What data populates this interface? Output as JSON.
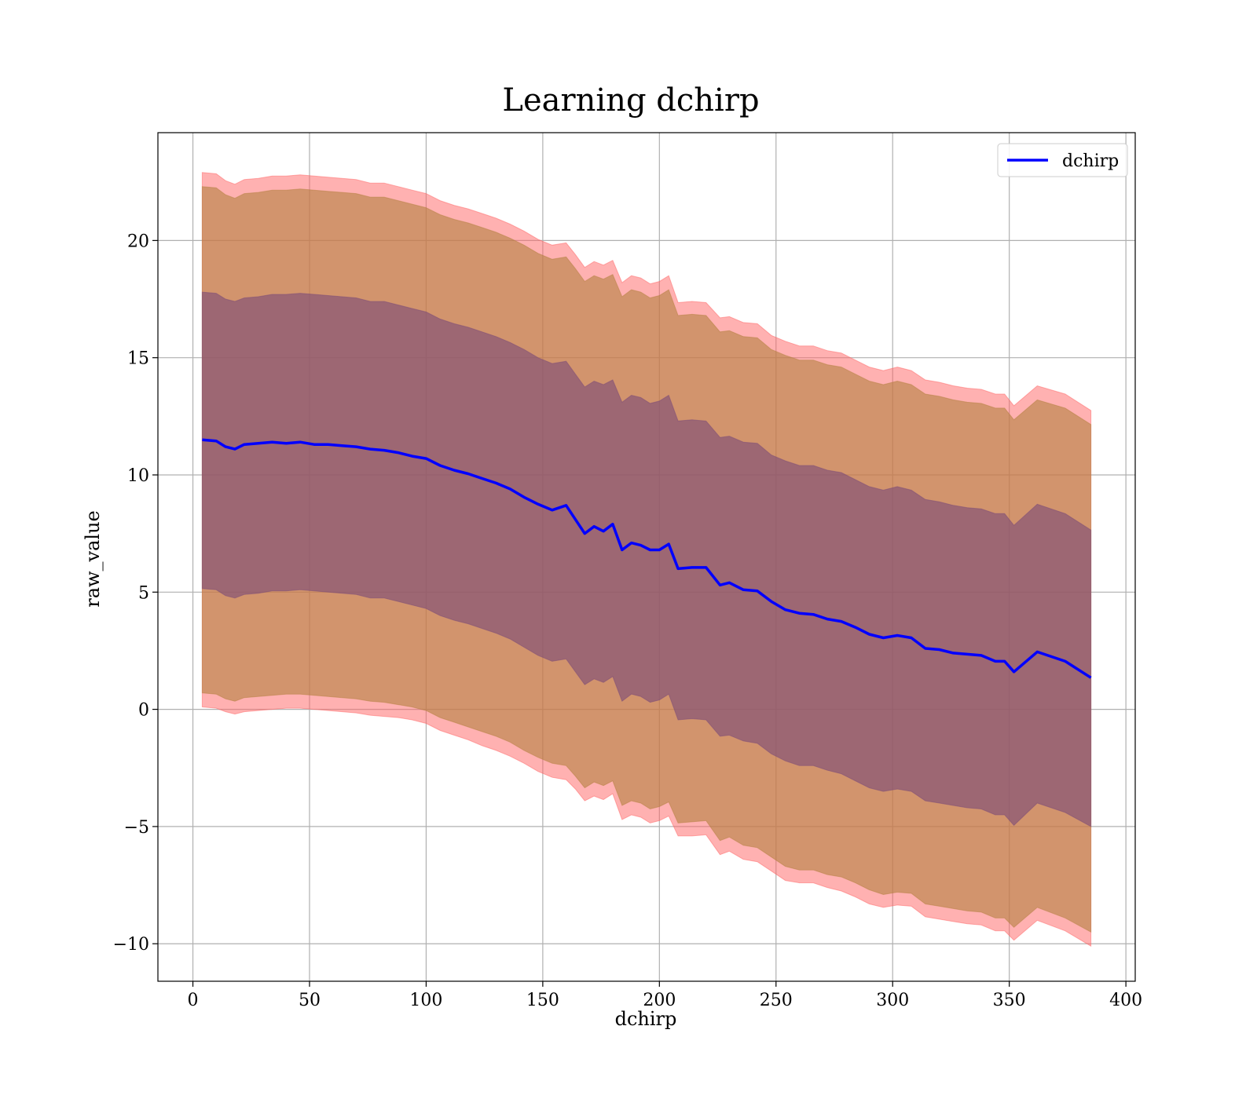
{
  "chart_data": {
    "type": "area",
    "title": "Learning dchirp",
    "xlabel": "dchirp",
    "ylabel": "raw_value",
    "xlim": [
      -15,
      404
    ],
    "ylim": [
      -11.6,
      24.6
    ],
    "xticks": [
      0,
      50,
      100,
      150,
      200,
      250,
      300,
      350,
      400
    ],
    "xtick_labels": [
      "0",
      "50",
      "100",
      "150",
      "200",
      "250",
      "300",
      "350",
      "400"
    ],
    "yticks": [
      -10,
      -5,
      0,
      5,
      10,
      15,
      20
    ],
    "ytick_labels": [
      "−10",
      "−5",
      "0",
      "5",
      "10",
      "15",
      "20"
    ],
    "grid": true,
    "legend": {
      "position": "top-right",
      "entries": [
        {
          "label": "dchirp",
          "color": "#0000ff"
        }
      ]
    },
    "x": [
      4,
      10,
      14,
      18,
      22,
      28,
      34,
      40,
      46,
      52,
      58,
      64,
      70,
      76,
      82,
      88,
      94,
      100,
      106,
      112,
      118,
      124,
      130,
      136,
      142,
      148,
      154,
      160,
      164,
      168,
      172,
      176,
      180,
      184,
      188,
      192,
      196,
      200,
      204,
      208,
      214,
      220,
      226,
      230,
      236,
      242,
      248,
      254,
      260,
      266,
      272,
      278,
      284,
      290,
      296,
      302,
      308,
      314,
      320,
      326,
      332,
      338,
      344,
      348,
      352,
      362,
      374,
      385
    ],
    "series": [
      {
        "name": "dchirp",
        "color": "#0000ff",
        "values": [
          11.5,
          11.45,
          11.2,
          11.1,
          11.3,
          11.35,
          11.4,
          11.35,
          11.4,
          11.3,
          11.3,
          11.25,
          11.2,
          11.1,
          11.05,
          10.95,
          10.8,
          10.7,
          10.4,
          10.2,
          10.05,
          9.85,
          9.65,
          9.4,
          9.05,
          8.75,
          8.5,
          8.7,
          8.1,
          7.5,
          7.8,
          7.6,
          7.9,
          6.8,
          7.1,
          7.0,
          6.8,
          6.8,
          7.05,
          6.0,
          6.05,
          6.05,
          5.3,
          5.4,
          5.1,
          5.05,
          4.6,
          4.25,
          4.1,
          4.05,
          3.85,
          3.75,
          3.5,
          3.2,
          3.05,
          3.15,
          3.05,
          2.6,
          2.55,
          2.4,
          2.35,
          2.3,
          2.05,
          2.05,
          1.6,
          2.45,
          2.05,
          1.35
        ]
      }
    ],
    "bands": [
      {
        "name": "outer",
        "color": "#ff6464",
        "opacity": 0.5,
        "lower": [
          0.1,
          0.05,
          -0.1,
          -0.2,
          -0.1,
          -0.05,
          0.0,
          0.05,
          0.05,
          0.0,
          -0.05,
          -0.1,
          -0.15,
          -0.25,
          -0.3,
          -0.35,
          -0.45,
          -0.6,
          -0.9,
          -1.1,
          -1.3,
          -1.55,
          -1.75,
          -2.0,
          -2.3,
          -2.65,
          -2.9,
          -3.0,
          -3.4,
          -3.9,
          -3.7,
          -3.85,
          -3.6,
          -4.7,
          -4.5,
          -4.6,
          -4.85,
          -4.75,
          -4.55,
          -5.4,
          -5.4,
          -5.35,
          -6.2,
          -6.05,
          -6.4,
          -6.5,
          -6.9,
          -7.3,
          -7.4,
          -7.4,
          -7.6,
          -7.75,
          -8.0,
          -8.3,
          -8.45,
          -8.35,
          -8.4,
          -8.85,
          -8.95,
          -9.05,
          -9.15,
          -9.2,
          -9.45,
          -9.45,
          -9.85,
          -9.0,
          -9.45,
          -10.1
        ],
        "upper": [
          22.9,
          22.85,
          22.55,
          22.4,
          22.6,
          22.65,
          22.75,
          22.75,
          22.8,
          22.75,
          22.7,
          22.65,
          22.6,
          22.45,
          22.45,
          22.3,
          22.15,
          22.0,
          21.7,
          21.5,
          21.35,
          21.15,
          20.95,
          20.7,
          20.4,
          20.05,
          19.8,
          19.9,
          19.4,
          18.85,
          19.1,
          18.95,
          19.15,
          18.2,
          18.5,
          18.4,
          18.15,
          18.25,
          18.5,
          17.35,
          17.4,
          17.35,
          16.7,
          16.75,
          16.5,
          16.45,
          15.95,
          15.7,
          15.5,
          15.5,
          15.3,
          15.2,
          14.9,
          14.6,
          14.45,
          14.6,
          14.45,
          14.05,
          13.95,
          13.8,
          13.7,
          13.65,
          13.45,
          13.45,
          12.95,
          13.8,
          13.45,
          12.75
        ]
      },
      {
        "name": "middle",
        "color": "#b48040",
        "opacity": 0.6,
        "lower": [
          0.7,
          0.65,
          0.45,
          0.35,
          0.5,
          0.55,
          0.6,
          0.65,
          0.65,
          0.6,
          0.55,
          0.5,
          0.45,
          0.35,
          0.3,
          0.2,
          0.1,
          -0.05,
          -0.35,
          -0.55,
          -0.75,
          -0.95,
          -1.15,
          -1.4,
          -1.75,
          -2.05,
          -2.3,
          -2.4,
          -2.85,
          -3.35,
          -3.1,
          -3.25,
          -3.05,
          -4.1,
          -3.9,
          -4.0,
          -4.25,
          -4.15,
          -3.95,
          -4.85,
          -4.8,
          -4.75,
          -5.6,
          -5.45,
          -5.8,
          -5.9,
          -6.3,
          -6.7,
          -6.85,
          -6.85,
          -7.05,
          -7.15,
          -7.4,
          -7.7,
          -7.9,
          -7.8,
          -7.85,
          -8.3,
          -8.4,
          -8.5,
          -8.6,
          -8.65,
          -8.9,
          -8.9,
          -9.3,
          -8.45,
          -8.9,
          -9.5
        ],
        "upper": [
          22.3,
          22.25,
          21.95,
          21.8,
          22.0,
          22.05,
          22.15,
          22.15,
          22.2,
          22.15,
          22.1,
          22.05,
          22.0,
          21.85,
          21.85,
          21.7,
          21.55,
          21.4,
          21.1,
          20.9,
          20.75,
          20.55,
          20.35,
          20.1,
          19.8,
          19.45,
          19.2,
          19.3,
          18.8,
          18.25,
          18.5,
          18.35,
          18.55,
          17.6,
          17.9,
          17.8,
          17.55,
          17.65,
          17.9,
          16.8,
          16.85,
          16.8,
          16.1,
          16.15,
          15.9,
          15.85,
          15.35,
          15.1,
          14.9,
          14.9,
          14.7,
          14.6,
          14.3,
          14.0,
          13.85,
          14.0,
          13.85,
          13.45,
          13.35,
          13.2,
          13.1,
          13.05,
          12.85,
          12.85,
          12.35,
          13.2,
          12.85,
          12.15
        ]
      },
      {
        "name": "inner",
        "color": "#7a4a78",
        "opacity": 0.6,
        "lower": [
          5.15,
          5.1,
          4.85,
          4.75,
          4.9,
          4.95,
          5.05,
          5.05,
          5.1,
          5.05,
          5.0,
          4.95,
          4.9,
          4.75,
          4.75,
          4.6,
          4.45,
          4.3,
          4.0,
          3.8,
          3.65,
          3.45,
          3.25,
          3.0,
          2.65,
          2.3,
          2.05,
          2.15,
          1.6,
          1.05,
          1.3,
          1.15,
          1.4,
          0.35,
          0.65,
          0.55,
          0.3,
          0.4,
          0.65,
          -0.45,
          -0.4,
          -0.45,
          -1.15,
          -1.1,
          -1.35,
          -1.45,
          -1.9,
          -2.2,
          -2.4,
          -2.4,
          -2.6,
          -2.75,
          -3.05,
          -3.35,
          -3.5,
          -3.4,
          -3.5,
          -3.9,
          -4.0,
          -4.1,
          -4.2,
          -4.25,
          -4.5,
          -4.5,
          -4.95,
          -4.0,
          -4.4,
          -5.0
        ],
        "upper": [
          17.8,
          17.75,
          17.5,
          17.4,
          17.55,
          17.6,
          17.7,
          17.7,
          17.75,
          17.7,
          17.65,
          17.6,
          17.55,
          17.4,
          17.4,
          17.25,
          17.1,
          16.95,
          16.65,
          16.45,
          16.3,
          16.1,
          15.9,
          15.65,
          15.35,
          15.0,
          14.75,
          14.85,
          14.3,
          13.75,
          14.0,
          13.85,
          14.05,
          13.1,
          13.4,
          13.3,
          13.05,
          13.15,
          13.4,
          12.3,
          12.35,
          12.3,
          11.6,
          11.65,
          11.4,
          11.35,
          10.85,
          10.6,
          10.4,
          10.4,
          10.2,
          10.1,
          9.8,
          9.5,
          9.35,
          9.5,
          9.35,
          8.95,
          8.85,
          8.7,
          8.6,
          8.55,
          8.35,
          8.35,
          7.85,
          8.75,
          8.35,
          7.65
        ]
      }
    ]
  }
}
